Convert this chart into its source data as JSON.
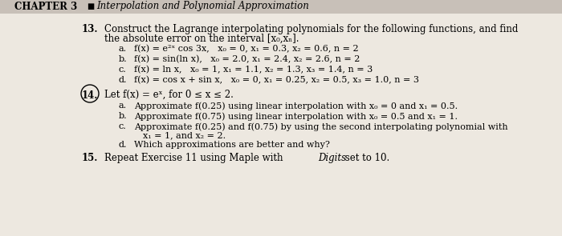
{
  "background_color": "#ede8e0",
  "header_bg": "#d8d0c8",
  "header_text_chapter": "CHAPTER 3",
  "header_bullet": "■",
  "header_text_title": "Interpolation and Polynomial Approximation",
  "q13_num": "13.",
  "q13_line1": "Construct the Lagrange interpolating polynomials for the following functions, and find",
  "q13_line2": "the absolute error on the interval [x₀,xₙ].",
  "q13a_label": "a.",
  "q13a_text": "f(x) = e²ˣ cos 3x,   x₀ = 0, x₁ = 0.3, x₂ = 0.6, n = 2",
  "q13b_label": "b.",
  "q13b_text": "f(x) = sin(ln x),   x₀ = 2.0, x₁ = 2.4, x₂ = 2.6, n = 2",
  "q13c_label": "c.",
  "q13c_text": "f(x) = ln x,   x₀ = 1, x₁ = 1.1, x₂ = 1.3, x₃ = 1.4, n = 3",
  "q13d_label": "d.",
  "q13d_text": "f(x) = cos x + sin x,   x₀ = 0, x₁ = 0.25, x₂ = 0.5, x₃ = 1.0, n = 3",
  "q14_num": "14.",
  "q14_text": "Let f(x) = eˣ, for 0 ≤ x ≤ 2.",
  "q14a_label": "a.",
  "q14a_text": "Approximate f(0.25) using linear interpolation with x₀ = 0 and x₁ = 0.5.",
  "q14b_label": "b.",
  "q14b_text": "Approximate f(0.75) using linear interpolation with x₀ = 0.5 and x₁ = 1.",
  "q14c_label": "c.",
  "q14c_text": "Approximate f(0.25) and f(0.75) by using the second interpolating polynomial with",
  "q14c_cont": "x₁ = 1, and x₂ = 2.",
  "q14d_label": "d.",
  "q14d_text": "Which approximations are better and why?",
  "q15_num": "15.",
  "q15_text": "Repeat Exercise 11 using Maple with Digits set to 10.",
  "fontsize": 8.5,
  "small_fontsize": 8.0
}
